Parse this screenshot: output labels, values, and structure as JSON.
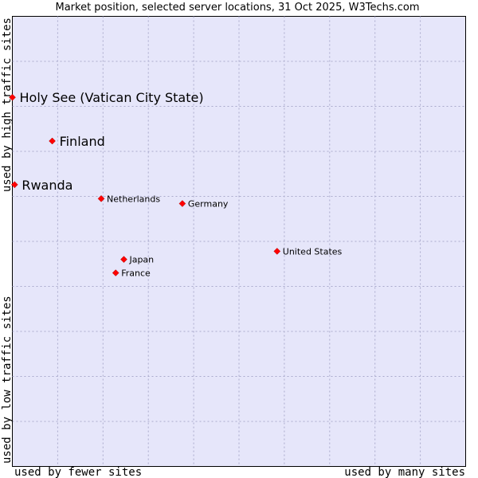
{
  "chart_data": {
    "type": "scatter",
    "title": "Market position, selected server locations, 31 Oct 2025, W3Techs.com",
    "xlabel_low": "used by fewer sites",
    "xlabel_high": "used by many sites",
    "ylabel_low": "used by low traffic sites",
    "ylabel_high": "used by high traffic sites",
    "xlim": [
      0,
      100
    ],
    "ylim": [
      0,
      100
    ],
    "grid": true,
    "colors": {
      "plot_background": "#e6e6fa",
      "grid": "#aaaacc",
      "marker": "#ff0000",
      "text": "#000000"
    },
    "points": [
      {
        "label": "Holy See (Vatican City State)",
        "x": 0.0,
        "y": 82.0,
        "emphasis": true
      },
      {
        "label": "Finland",
        "x": 8.8,
        "y": 72.3,
        "emphasis": true
      },
      {
        "label": "Rwanda",
        "x": 0.5,
        "y": 62.6,
        "emphasis": true
      },
      {
        "label": "Netherlands",
        "x": 19.6,
        "y": 59.5,
        "emphasis": false
      },
      {
        "label": "Germany",
        "x": 37.5,
        "y": 58.4,
        "emphasis": false
      },
      {
        "label": "United States",
        "x": 58.4,
        "y": 47.8,
        "emphasis": false
      },
      {
        "label": "Japan",
        "x": 24.6,
        "y": 46.0,
        "emphasis": false
      },
      {
        "label": "France",
        "x": 22.8,
        "y": 43.0,
        "emphasis": false
      }
    ]
  }
}
